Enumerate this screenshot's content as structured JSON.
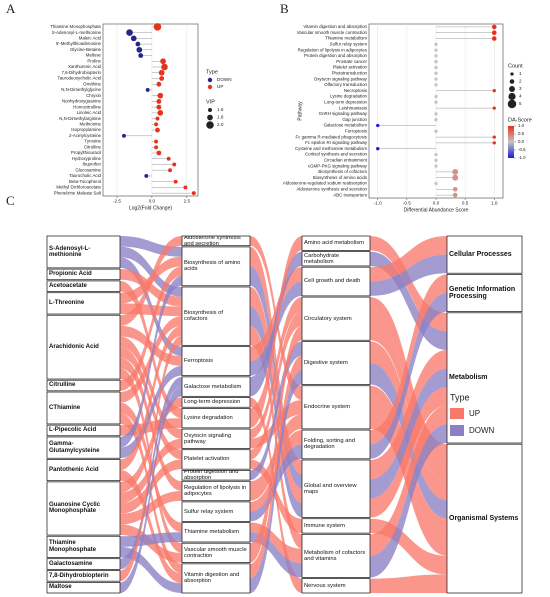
{
  "panel_labels": [
    "A",
    "B",
    "C"
  ],
  "chart_data": [
    {
      "type": "lollipop",
      "categories": [
        "Thiamine Monophosphate",
        "S-Adenosyl-L-methionine",
        "Maleic Acid",
        "5'-Methylthioadenosine",
        "Glycine-Betaine",
        "Maltose",
        "Proline",
        "Xanthurenic Acid",
        "7,8-Dihydrobiopterin",
        "Taurodeoxycholic Acid",
        "Ornithine",
        "N,N-Dimethylglycine",
        "Chrysin",
        "Nonhydroxyguanine",
        "Homocitrulline",
        "Linoleic Acid",
        "N,N-Dimethylarginine",
        "Methionine",
        "Isopropylamine",
        "2-Acetylcysteine",
        "Tyrosine",
        "Citrulline",
        "Propylthiouracil",
        "Hydroxyproline",
        "Ibuprofen",
        "Glucosamine",
        "Taurocholic Acid",
        "Beta-Tocopherol",
        "Methyl Dichloroacetate",
        "Phenelzine Maleate Salt"
      ],
      "values": [
        0.4,
        -1.6,
        -1.3,
        -1.0,
        -0.9,
        -0.8,
        0.8,
        0.9,
        0.7,
        0.7,
        0.5,
        -0.3,
        0.6,
        0.5,
        0.5,
        0.6,
        0.4,
        0.3,
        0.4,
        -2.0,
        0.3,
        0.3,
        0.5,
        1.2,
        1.6,
        1.3,
        -0.4,
        1.7,
        2.4,
        3.0
      ],
      "types": [
        "UP",
        "DOWN",
        "DOWN",
        "DOWN",
        "DOWN",
        "DOWN",
        "UP",
        "UP",
        "UP",
        "UP",
        "UP",
        "DOWN",
        "UP",
        "UP",
        "UP",
        "UP",
        "UP",
        "UP",
        "UP",
        "DOWN",
        "UP",
        "UP",
        "UP",
        "UP",
        "UP",
        "UP",
        "DOWN",
        "UP",
        "UP",
        "UP"
      ],
      "sizes": [
        2.0,
        1.9,
        1.8,
        1.7,
        1.8,
        1.7,
        1.8,
        1.9,
        1.8,
        1.7,
        1.7,
        1.6,
        1.8,
        1.7,
        1.7,
        1.8,
        1.6,
        1.6,
        1.7,
        1.6,
        1.6,
        1.6,
        1.7,
        1.6,
        1.6,
        1.6,
        1.6,
        1.6,
        1.6,
        1.6
      ],
      "groups": [
        {
          "name": "DOWN",
          "color": "#25258a"
        },
        {
          "name": "UP",
          "color": "#e8321c"
        }
      ],
      "group_title": "Type",
      "size_legend": {
        "title": "VIP",
        "values": [
          1.6,
          1.8,
          {
            "value": 2,
            "label": "2.0"
          }
        ]
      },
      "xlabel": "Log2(Fold Change)",
      "xlim": [
        -3.5,
        3.3
      ],
      "xticks": [
        {
          "value": -2.5,
          "label": "-2.5"
        },
        {
          "value": 0,
          "label": "0.0"
        },
        {
          "value": 2.5,
          "label": "2.5"
        }
      ]
    },
    {
      "type": "lollipop",
      "categories": [
        "Vitamin digestion and absorption",
        "Vascular smooth muscle contraction",
        "Thiamine metabolism",
        "Sulfur relay system",
        "Regulation of lipolysis in adipocytes",
        "Protein digestion and absorption",
        "Prostate cancer",
        "Platelet activation",
        "Phototransduction",
        "Oxytocin signaling pathway",
        "Olfactory transduction",
        "Necroptosis",
        "Lysine degradation",
        "Long-term depression",
        "Leishmaniasis",
        "GnRH signaling pathway",
        "Gap junction",
        "Galactose metabolism",
        "Ferroptosis",
        "Fc gamma R-mediated phagocytosis",
        "Fc epsilon RI signaling pathway",
        "Cysteine and methionine metabolism",
        "Cortisol synthesis and secretion",
        "Circadian entrainment",
        "cGMP-PKG signaling pathway",
        "Biosynthesis of cofactors",
        "Biosynthesis of amino acids",
        "Aldosterone-regulated sodium reabsorption",
        "Aldosterone synthesis and secretion",
        "ABC transporters"
      ],
      "values": [
        1,
        1,
        1,
        0,
        0,
        0,
        0,
        0,
        0,
        0,
        0,
        1,
        0,
        0,
        1,
        0,
        0,
        -1,
        0,
        1,
        1,
        -1,
        0,
        0,
        0,
        0.33,
        0.33,
        0,
        0.33,
        0.33
      ],
      "sizes": [
        2,
        2,
        2,
        1,
        1,
        1,
        1,
        1,
        1,
        1,
        1,
        1,
        1,
        1,
        1,
        1,
        1,
        1,
        1,
        1,
        1,
        1,
        1,
        1,
        1,
        3,
        3,
        1,
        2,
        2
      ],
      "ylabel": "Pathway",
      "xlabel": "Differential Abundance Score",
      "size_legend": {
        "title": "Count",
        "values": [
          1,
          2,
          3,
          4,
          5
        ]
      },
      "colorbar": {
        "title": "DA-Score",
        "lim": [
          -1,
          1
        ],
        "colors": [
          "#1a1ad6",
          "#c4c4c4",
          "#e8321c"
        ],
        "ticks": [
          {
            "value": 1,
            "label": "1.0"
          },
          {
            "value": 0.5,
            "label": "0.5"
          },
          {
            "value": 0,
            "label": "0.0"
          },
          {
            "value": -0.5,
            "label": "-0.5"
          },
          {
            "value": -1,
            "label": "-1.0"
          }
        ]
      },
      "xlim": [
        -1.15,
        1.15
      ],
      "xticks": [
        {
          "value": -1,
          "label": "-1.0"
        },
        {
          "value": -0.5,
          "label": "-0.5"
        },
        {
          "value": 0,
          "label": "0.0"
        },
        {
          "value": 0.5,
          "label": "0.5"
        },
        {
          "value": 1,
          "label": "1.0"
        }
      ]
    }
  ],
  "sankey": {
    "columns": [
      [
        "S-Adenosyl-L-methionine",
        "Propionic Acid",
        "Acetoacetate",
        "L-Threonine",
        "Arachidonic Acid",
        "Citrulline",
        "CThiamine",
        "L-Pipecolic Acid",
        "Gamma-Glutamylcysteine",
        "Pantothenic Acid",
        "Guanosine Cyclic Monophosphate",
        "Thiamine Monophosphate",
        "Galactosamine",
        "7,8-Dihydrobiopterin",
        "Maltose"
      ],
      [
        "Aldosterone synthesis and secretion",
        "Biosynthesis of amino acids",
        "Biosynthesis of cofactors",
        "Ferroptosis",
        "Galactose metabolism",
        "Long-term depression",
        "Lysine degradation",
        "Oxytocin signaling pathway",
        "Platelet activation",
        "Protein digestion and absorption",
        "Regulation of lipolysis in adipocytes",
        "Sulfur relay system",
        "Thiamine metabolism",
        "Vascular smooth muscle contraction",
        "Vitamin digestion and absorption"
      ],
      [
        "Amino acid metabolism",
        "Carbohydrate metabolism",
        "Cell growth and death",
        "Circulatory system",
        "Digestive system",
        "Endocrine system",
        "Folding, sorting and degradation",
        "Global and overview maps",
        "Immune system",
        "Metabolism of cofactors and vitamins",
        "Nervous system"
      ],
      [
        "Cellular Processes",
        "Genetic Information Processing",
        "Metabolism",
        "Organismal Systems"
      ]
    ],
    "legend_title": "Type",
    "types": [
      {
        "name": "UP",
        "color": "#f8786a"
      },
      {
        "name": "DOWN",
        "color": "#8b80c4"
      }
    ],
    "links": [
      [
        0,
        0,
        1,
        1
      ],
      [
        0,
        0,
        2,
        1
      ],
      [
        0,
        0,
        3,
        1
      ],
      [
        0,
        1,
        2,
        0
      ],
      [
        0,
        2,
        6,
        0
      ],
      [
        0,
        3,
        1,
        0
      ],
      [
        0,
        3,
        2,
        0
      ],
      [
        0,
        4,
        0,
        0
      ],
      [
        0,
        4,
        3,
        0
      ],
      [
        0,
        4,
        7,
        0
      ],
      [
        0,
        4,
        8,
        0
      ],
      [
        0,
        4,
        10,
        0
      ],
      [
        0,
        4,
        13,
        0
      ],
      [
        0,
        5,
        1,
        0
      ],
      [
        0,
        6,
        2,
        0
      ],
      [
        0,
        6,
        12,
        0
      ],
      [
        0,
        6,
        14,
        0
      ],
      [
        0,
        7,
        6,
        0
      ],
      [
        0,
        8,
        1,
        1
      ],
      [
        0,
        8,
        3,
        1
      ],
      [
        0,
        9,
        2,
        0
      ],
      [
        0,
        9,
        14,
        0
      ],
      [
        0,
        10,
        5,
        0
      ],
      [
        0,
        10,
        7,
        0
      ],
      [
        0,
        10,
        8,
        0
      ],
      [
        0,
        10,
        10,
        0
      ],
      [
        0,
        10,
        13,
        0
      ],
      [
        0,
        11,
        12,
        1
      ],
      [
        0,
        11,
        14,
        1
      ],
      [
        0,
        12,
        4,
        1
      ],
      [
        0,
        13,
        2,
        0
      ],
      [
        0,
        14,
        4,
        1
      ],
      [
        1,
        0,
        5,
        0
      ],
      [
        1,
        1,
        7,
        0
      ],
      [
        1,
        1,
        7,
        1
      ],
      [
        1,
        2,
        7,
        0
      ],
      [
        1,
        2,
        9,
        0
      ],
      [
        1,
        2,
        7,
        1
      ],
      [
        1,
        3,
        2,
        0
      ],
      [
        1,
        3,
        2,
        1
      ],
      [
        1,
        4,
        1,
        1
      ],
      [
        1,
        5,
        10,
        0
      ],
      [
        1,
        6,
        0,
        0
      ],
      [
        1,
        7,
        5,
        0
      ],
      [
        1,
        7,
        3,
        0
      ],
      [
        1,
        8,
        8,
        0
      ],
      [
        1,
        8,
        3,
        0
      ],
      [
        1,
        9,
        4,
        1
      ],
      [
        1,
        10,
        5,
        0
      ],
      [
        1,
        11,
        6,
        0
      ],
      [
        1,
        11,
        6,
        1
      ],
      [
        1,
        12,
        9,
        0
      ],
      [
        1,
        12,
        9,
        1
      ],
      [
        1,
        13,
        3,
        0
      ],
      [
        1,
        14,
        4,
        0
      ],
      [
        1,
        14,
        4,
        1
      ],
      [
        2,
        0,
        2,
        0
      ],
      [
        2,
        1,
        2,
        1
      ],
      [
        2,
        2,
        0,
        0
      ],
      [
        2,
        2,
        0,
        1
      ],
      [
        2,
        3,
        3,
        0
      ],
      [
        2,
        3,
        3,
        0
      ],
      [
        2,
        4,
        3,
        0
      ],
      [
        2,
        4,
        3,
        1
      ],
      [
        2,
        5,
        3,
        0
      ],
      [
        2,
        5,
        3,
        0
      ],
      [
        2,
        6,
        1,
        0
      ],
      [
        2,
        6,
        1,
        1
      ],
      [
        2,
        7,
        2,
        0
      ],
      [
        2,
        7,
        2,
        1
      ],
      [
        2,
        7,
        2,
        0
      ],
      [
        2,
        8,
        3,
        0
      ],
      [
        2,
        9,
        2,
        0
      ],
      [
        2,
        9,
        2,
        1
      ],
      [
        2,
        10,
        3,
        0
      ]
    ]
  }
}
